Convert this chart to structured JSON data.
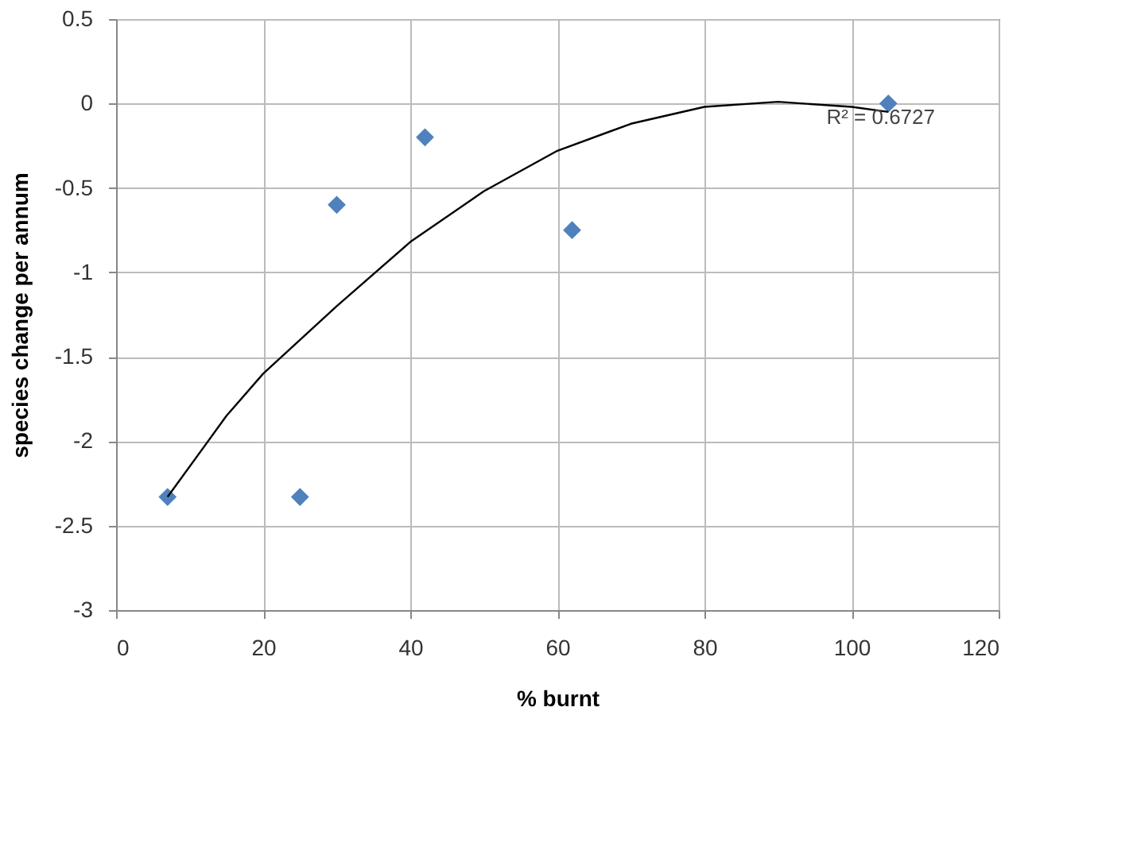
{
  "chart_data": {
    "type": "scatter",
    "xlabel": "% burnt",
    "ylabel": "species change per annum",
    "series": [
      {
        "color": "#4f81bd",
        "x": [
          7,
          25,
          30,
          42,
          62,
          105
        ],
        "values": [
          -2.33,
          -2.33,
          -0.6,
          -0.2,
          -0.75,
          0
        ]
      },
      {
        "type": "line",
        "marker": "none",
        "color": "#000000",
        "x": [
          7,
          15,
          20,
          30,
          40,
          50,
          60,
          70,
          80,
          90,
          100,
          105
        ],
        "values": [
          -2.33,
          -1.85,
          -1.6,
          -1.2,
          -0.82,
          -0.52,
          -0.28,
          -0.12,
          -0.02,
          0.01,
          -0.02,
          -0.05
        ]
      }
    ],
    "annotations": [
      "R² = 0.6727"
    ],
    "xlim": [
      0,
      120
    ],
    "xticks": [
      0,
      20,
      40,
      60,
      80,
      100,
      120
    ],
    "ylim": [
      -3,
      0.5
    ],
    "yticks": [
      -3,
      -2.5,
      -2,
      -1.5,
      -1,
      -0.5,
      0,
      0.5
    ],
    "grid": true,
    "marker": "diamond"
  }
}
